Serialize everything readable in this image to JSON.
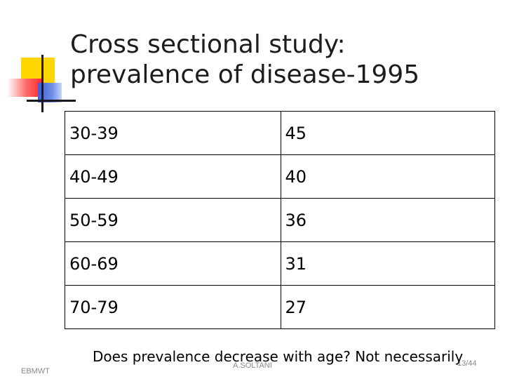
{
  "slide": {
    "title": "Cross sectional study: prevalence of disease-1995",
    "table": {
      "rows": [
        {
          "age": "30-39",
          "value": "45"
        },
        {
          "age": "40-49",
          "value": "40"
        },
        {
          "age": "50-59",
          "value": "36"
        },
        {
          "age": "60-69",
          "value": "31"
        },
        {
          "age": "70-79",
          "value": "27"
        }
      ]
    },
    "question": "Does prevalence decrease with age? Not necessarily",
    "footer": {
      "left": "EBMWT",
      "center": "A.SOLTANI",
      "right": "13/44"
    }
  },
  "colors": {
    "background": "#ffffff",
    "deco_yellow": "#ffd600",
    "deco_red": "#ff2b2b",
    "deco_blue": "#3f5fd0",
    "footer_text": "#8a8a8a"
  }
}
